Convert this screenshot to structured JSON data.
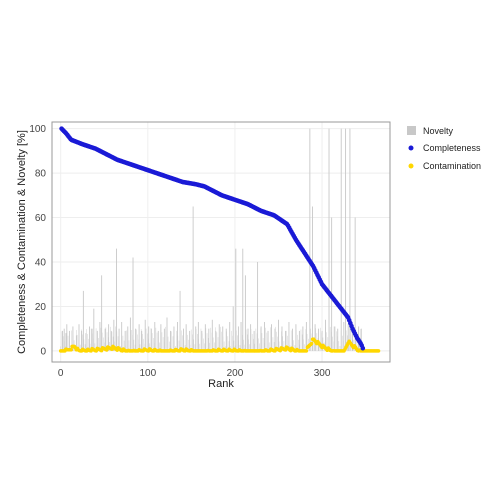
{
  "chart_data": {
    "type": "scatter",
    "xlabel": "Rank",
    "ylabel": "Completeness & Contamination & Novelty [%]",
    "xlim": [
      -10,
      378
    ],
    "ylim": [
      -5,
      103
    ],
    "x_ticks": [
      0,
      100,
      200,
      300
    ],
    "y_ticks": [
      0,
      20,
      40,
      60,
      80,
      100
    ],
    "grid": true,
    "legend_position": "right",
    "colors": {
      "novelty": "#c8c8c8",
      "completeness": "#1a1ad6",
      "contamination": "#ffd700"
    },
    "series": [
      {
        "name": "Novelty",
        "kind": "bar",
        "sparse_values": [
          [
            2,
            9
          ],
          [
            4,
            10
          ],
          [
            6,
            8
          ],
          [
            7,
            12
          ],
          [
            10,
            9
          ],
          [
            14,
            11
          ],
          [
            18,
            7
          ],
          [
            21,
            12
          ],
          [
            24,
            9
          ],
          [
            26,
            27
          ],
          [
            29,
            8
          ],
          [
            33,
            11
          ],
          [
            36,
            10
          ],
          [
            38,
            19
          ],
          [
            42,
            9
          ],
          [
            45,
            13
          ],
          [
            47,
            34
          ],
          [
            51,
            10
          ],
          [
            55,
            12
          ],
          [
            58,
            9
          ],
          [
            61,
            14
          ],
          [
            64,
            46
          ],
          [
            67,
            10
          ],
          [
            70,
            13
          ],
          [
            74,
            9
          ],
          [
            77,
            11
          ],
          [
            80,
            15
          ],
          [
            83,
            42
          ],
          [
            86,
            10
          ],
          [
            90,
            12
          ],
          [
            93,
            9
          ],
          [
            97,
            14
          ],
          [
            101,
            11
          ],
          [
            104,
            10
          ],
          [
            108,
            13
          ],
          [
            112,
            9
          ],
          [
            115,
            12
          ],
          [
            119,
            10
          ],
          [
            122,
            15
          ],
          [
            126,
            9
          ],
          [
            130,
            11
          ],
          [
            134,
            13
          ],
          [
            137,
            27
          ],
          [
            141,
            10
          ],
          [
            144,
            12
          ],
          [
            148,
            9
          ],
          [
            152,
            65
          ],
          [
            155,
            11
          ],
          [
            158,
            13
          ],
          [
            162,
            9
          ],
          [
            166,
            12
          ],
          [
            170,
            10
          ],
          [
            174,
            14
          ],
          [
            178,
            9
          ],
          [
            182,
            12
          ],
          [
            186,
            11
          ],
          [
            190,
            10
          ],
          [
            194,
            13
          ],
          [
            198,
            20
          ],
          [
            201,
            46
          ],
          [
            204,
            11
          ],
          [
            207,
            13
          ],
          [
            209,
            46
          ],
          [
            212,
            34
          ],
          [
            215,
            10
          ],
          [
            218,
            12
          ],
          [
            222,
            9
          ],
          [
            226,
            40
          ],
          [
            230,
            11
          ],
          [
            234,
            13
          ],
          [
            238,
            9
          ],
          [
            242,
            12
          ],
          [
            246,
            10
          ],
          [
            250,
            14
          ],
          [
            254,
            11
          ],
          [
            258,
            9
          ],
          [
            262,
            13
          ],
          [
            266,
            10
          ],
          [
            270,
            12
          ],
          [
            274,
            9
          ],
          [
            278,
            11
          ],
          [
            282,
            13
          ],
          [
            286,
            100
          ],
          [
            289,
            65
          ],
          [
            292,
            12
          ],
          [
            296,
            10
          ],
          [
            300,
            9
          ],
          [
            304,
            14
          ],
          [
            308,
            100
          ],
          [
            311,
            60
          ],
          [
            314,
            11
          ],
          [
            318,
            10
          ],
          [
            322,
            100
          ],
          [
            325,
            13
          ],
          [
            327,
            100
          ],
          [
            330,
            12
          ],
          [
            332,
            100
          ],
          [
            335,
            9
          ],
          [
            338,
            60
          ],
          [
            342,
            11
          ],
          [
            345,
            10
          ]
        ]
      },
      {
        "name": "Completeness",
        "kind": "points",
        "x": [
          1,
          6,
          12,
          25,
          40,
          55,
          65,
          80,
          95,
          110,
          125,
          140,
          155,
          165,
          185,
          200,
          215,
          230,
          245,
          260,
          270,
          280,
          290,
          300,
          310,
          320,
          330,
          335,
          340,
          345,
          348
        ],
        "values": [
          100,
          98,
          95,
          93,
          91,
          88,
          86,
          84,
          82,
          80,
          78,
          76,
          75,
          74,
          70,
          68,
          66,
          63,
          61,
          57,
          50,
          44,
          38,
          30,
          25,
          20,
          15,
          10,
          6,
          3,
          0
        ]
      },
      {
        "name": "Contamination",
        "kind": "points",
        "x": [
          0,
          8,
          12,
          16,
          20,
          40,
          60,
          80,
          100,
          120,
          140,
          160,
          180,
          200,
          220,
          240,
          260,
          280,
          290,
          300,
          315,
          325,
          330,
          345,
          350,
          355,
          360,
          365
        ],
        "values": [
          0,
          1,
          2,
          3,
          1,
          1,
          2,
          0,
          1,
          0,
          1,
          0,
          1,
          1,
          0,
          1,
          2,
          0,
          6,
          3,
          0,
          0,
          5,
          0,
          0,
          0,
          0,
          0
        ]
      }
    ]
  }
}
